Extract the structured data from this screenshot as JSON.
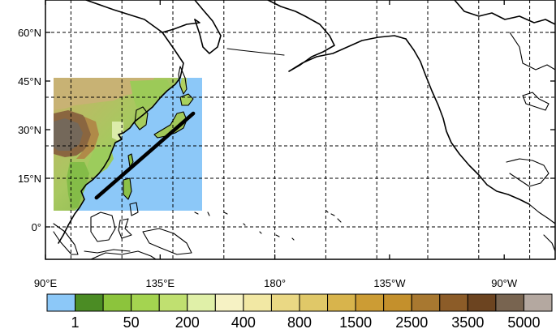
{
  "map": {
    "projection": "equirectangular, Pacific-centred",
    "lon_range": [
      90,
      290
    ],
    "lat_range": [
      -10,
      70
    ],
    "x_tick_labels": [
      {
        "lon": 90,
        "label": "90°E"
      },
      {
        "lon": 135,
        "label": "135°E"
      },
      {
        "lon": 180,
        "label": "180°"
      },
      {
        "lon": 225,
        "label": "135°W"
      },
      {
        "lon": 270,
        "label": "90°W"
      }
    ],
    "y_tick_labels": [
      {
        "lat": 60,
        "label": "60°N"
      },
      {
        "lat": 45,
        "label": "45°N"
      },
      {
        "lat": 30,
        "label": "30°N"
      },
      {
        "lat": 15,
        "label": "15°N"
      },
      {
        "lat": 0,
        "label": "0°"
      }
    ],
    "grid_lons": [
      100,
      120,
      140,
      160,
      180,
      200,
      220,
      240,
      260,
      280
    ],
    "grid_lats": [
      0,
      15,
      25,
      40,
      60
    ],
    "grid": "dashed",
    "topography_domain": {
      "lon_range": [
        97,
        148
      ],
      "lat_range": [
        9,
        53
      ],
      "ocean_color": "#8cc8f8"
    },
    "section_line": {
      "start": {
        "lon": 110,
        "lat": 9
      },
      "end": {
        "lon": 148,
        "lat": 35
      },
      "color": "#000000"
    }
  },
  "colorbar": {
    "colors": [
      "#8cc8f8",
      "#4b8c24",
      "#8cc43c",
      "#a4d450",
      "#c0e070",
      "#e0f0a8",
      "#f6f2c4",
      "#f2e8a4",
      "#ead884",
      "#e0c868",
      "#d8b44c",
      "#cc9c34",
      "#c4902c",
      "#a87830",
      "#8c5c28",
      "#6c4420",
      "#786450",
      "#b4a8a0"
    ],
    "labels": [
      "1",
      "50",
      "200",
      "400",
      "800",
      "1500",
      "2500",
      "3500",
      "5000"
    ]
  }
}
